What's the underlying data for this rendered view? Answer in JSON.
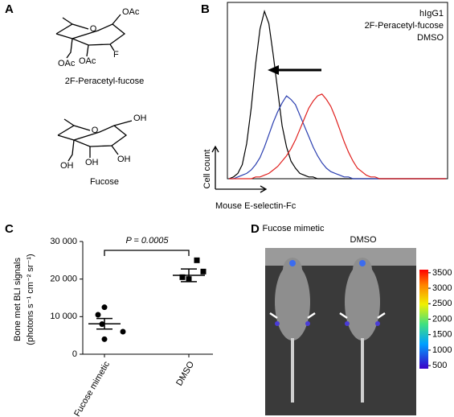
{
  "panel_labels": [
    "A",
    "B",
    "C",
    "D"
  ],
  "structures": [
    {
      "atoms": [
        "O",
        "OAc",
        "F",
        "OAc",
        "OAc"
      ],
      "caption": "2F-Peracetyl-fucose"
    },
    {
      "atoms": [
        "O",
        "OH",
        "OH",
        "OH",
        "OH"
      ],
      "caption": "Fucose"
    }
  ],
  "image_panel": {
    "groups": [
      "Fucose mimetic",
      "DMSO"
    ],
    "colorbar": {
      "lim": [
        400,
        3600
      ],
      "ticks": [
        500,
        1000,
        1500,
        2000,
        2500,
        3000,
        3500
      ]
    }
  },
  "chart_data": [
    {
      "type": "line",
      "xlabel": "Mouse E-selectin-Fc",
      "ylabel": "Cell count",
      "ylim": [
        0,
        100
      ],
      "series": [
        {
          "name": "hIgG1",
          "color": "#000000",
          "values": [
            0,
            1,
            3,
            8,
            20,
            40,
            65,
            85,
            95,
            88,
            70,
            50,
            30,
            18,
            10,
            6,
            3,
            2,
            1,
            1,
            0,
            0,
            0,
            0,
            0,
            0,
            0,
            0,
            0,
            0,
            0,
            0,
            0,
            0,
            0,
            0,
            0,
            0,
            0,
            0,
            0,
            0,
            0,
            0,
            0,
            0,
            0,
            0,
            0,
            0
          ]
        },
        {
          "name": "2F-Peracetyl-fucose",
          "color": "#2b3fb0",
          "values": [
            0,
            0,
            1,
            2,
            3,
            5,
            8,
            12,
            18,
            25,
            32,
            38,
            43,
            47,
            45,
            42,
            36,
            30,
            24,
            18,
            13,
            9,
            6,
            4,
            3,
            2,
            1,
            1,
            0,
            0,
            0,
            0,
            0,
            0,
            0,
            0,
            0,
            0,
            0,
            0,
            0,
            0,
            0,
            0,
            0,
            0,
            0,
            0,
            0,
            0
          ]
        },
        {
          "name": "DMSO",
          "color": "#e0201e",
          "values": [
            0,
            0,
            0,
            0,
            0,
            0,
            1,
            1,
            2,
            3,
            5,
            7,
            10,
            13,
            17,
            22,
            28,
            34,
            40,
            44,
            47,
            48,
            45,
            41,
            35,
            28,
            21,
            15,
            10,
            6,
            4,
            2,
            1,
            1,
            0,
            0,
            0,
            0,
            0,
            0,
            0,
            0,
            0,
            0,
            0,
            0,
            0,
            0,
            0,
            0
          ]
        }
      ]
    },
    {
      "type": "scatter",
      "ylabel": [
        "Bone met BLI signals",
        "(photons s⁻¹ cm⁻² sr⁻¹)"
      ],
      "categories": [
        "Fucose mimetic",
        "DMSO"
      ],
      "points": [
        [
          12500,
          10500,
          8000,
          6000,
          4000
        ],
        [
          25000,
          22000,
          20000,
          20500
        ]
      ],
      "means": [
        8100,
        21000
      ],
      "sem": [
        1400,
        1700
      ],
      "annotation": "P = 0.0005",
      "ylim": [
        0,
        30000
      ],
      "yticks": [
        0,
        {
          "value": 10000,
          "label": "10 000"
        },
        {
          "value": 20000,
          "label": "20 000"
        },
        {
          "value": 30000,
          "label": "30 000"
        }
      ]
    }
  ]
}
